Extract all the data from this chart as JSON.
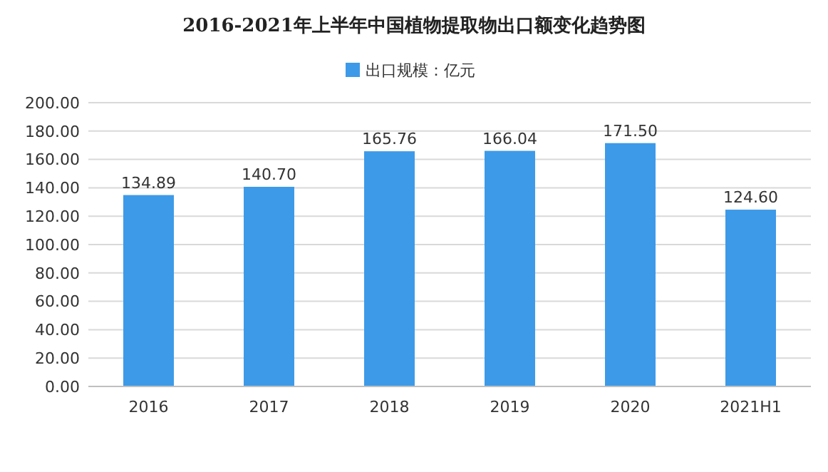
{
  "chart_data": {
    "type": "bar",
    "title": "2016-2021年上半年中国植物提取物出口额变化趋势图",
    "categories": [
      "2016",
      "2017",
      "2018",
      "2019",
      "2020",
      "2021H1"
    ],
    "series": [
      {
        "name": "出口规模：亿元",
        "color": "#3d9ae8",
        "values": [
          134.89,
          140.7,
          165.76,
          166.04,
          171.5,
          124.6
        ],
        "value_labels": [
          "134.89",
          "140.70",
          "165.76",
          "166.04",
          "171.50",
          "124.60"
        ]
      }
    ],
    "ylim": [
      0,
      200
    ],
    "yticks": [
      {
        "value": 0,
        "label": "0.00"
      },
      {
        "value": 20,
        "label": "20.00"
      },
      {
        "value": 40,
        "label": "40.00"
      },
      {
        "value": 60,
        "label": "60.00"
      },
      {
        "value": 80,
        "label": "80.00"
      },
      {
        "value": 100,
        "label": "100.00"
      },
      {
        "value": 120,
        "label": "120.00"
      },
      {
        "value": 140,
        "label": "140.00"
      },
      {
        "value": 160,
        "label": "160.00"
      },
      {
        "value": 180,
        "label": "180.00"
      },
      {
        "value": 200,
        "label": "200.00"
      }
    ],
    "grid": "y",
    "legend": "top"
  }
}
